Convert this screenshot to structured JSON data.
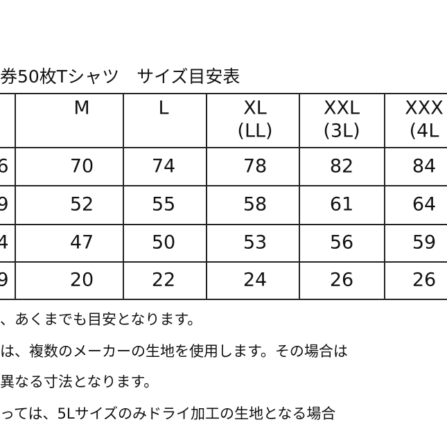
{
  "header": {
    "title": "券50枚Tシャツ　サイズ目安表"
  },
  "table": {
    "columns": [
      null,
      [
        "M"
      ],
      [
        "L"
      ],
      [
        "XL",
        "(LL)"
      ],
      [
        "XXL",
        "(3L)"
      ],
      [
        "XXX",
        "(4L"
      ]
    ],
    "rows": [
      [
        "6",
        "70",
        "74",
        "78",
        "82",
        "84"
      ],
      [
        "9",
        "52",
        "55",
        "58",
        "61",
        "64"
      ],
      [
        "4",
        "47",
        "50",
        "53",
        "56",
        "59"
      ],
      [
        "9",
        "20",
        "22",
        "24",
        "26",
        "26"
      ]
    ]
  },
  "notes": [
    "、あくまでも目安となります。",
    "は、複数のメーカーの生地を使用します。その場合は",
    "異なる寸法となります。",
    "っては、5Lサイズのみドライ加工の生地となる場合"
  ]
}
